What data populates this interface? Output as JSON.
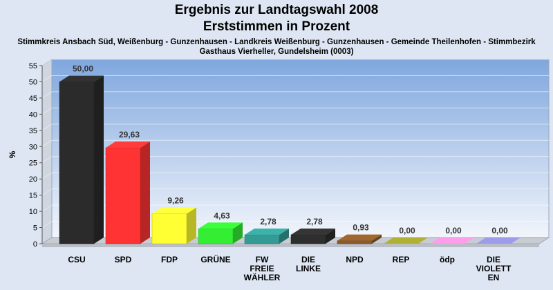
{
  "chart_data": {
    "type": "bar",
    "title": "Ergebnis zur Landtagswahl 2008",
    "subtitle": "Erststimmen in Prozent",
    "description_lines": [
      "Stimmkreis Ansbach Süd, Weißenburg - Gunzenhausen - Landkreis Weißenburg - Gunzenhausen - Gemeinde Theilenhofen - Stimmbezirk",
      "Gasthaus Vierheller, Gundelsheim (0003)"
    ],
    "ylabel": "%",
    "ylim": [
      0,
      55
    ],
    "yticks": [
      0,
      5,
      10,
      15,
      20,
      25,
      30,
      35,
      40,
      45,
      50,
      55
    ],
    "grid": true,
    "categories": [
      [
        "CSU"
      ],
      [
        "SPD"
      ],
      [
        "FDP"
      ],
      [
        "GRÜNE"
      ],
      [
        "FW",
        "FREIE",
        "WÄHLER"
      ],
      [
        "DIE",
        "LINKE"
      ],
      [
        "NPD"
      ],
      [
        "REP"
      ],
      [
        "ödp"
      ],
      [
        "DIE",
        "VIOLETT",
        "EN"
      ]
    ],
    "values": [
      50.0,
      29.63,
      9.26,
      4.63,
      2.78,
      2.78,
      0.93,
      0.0,
      0.0,
      0.0
    ],
    "value_labels": [
      "50,00",
      "29,63",
      "9,26",
      "4,63",
      "2,78",
      "2,78",
      "0,93",
      "0,00",
      "0,00",
      "0,00"
    ],
    "colors": [
      "#2b2b2b",
      "#ff3333",
      "#ffff33",
      "#33ee33",
      "#339b94",
      "#2e2e2e",
      "#8b5a2b",
      "#9a9a2b",
      "#ff88cc",
      "#8888cc"
    ]
  }
}
